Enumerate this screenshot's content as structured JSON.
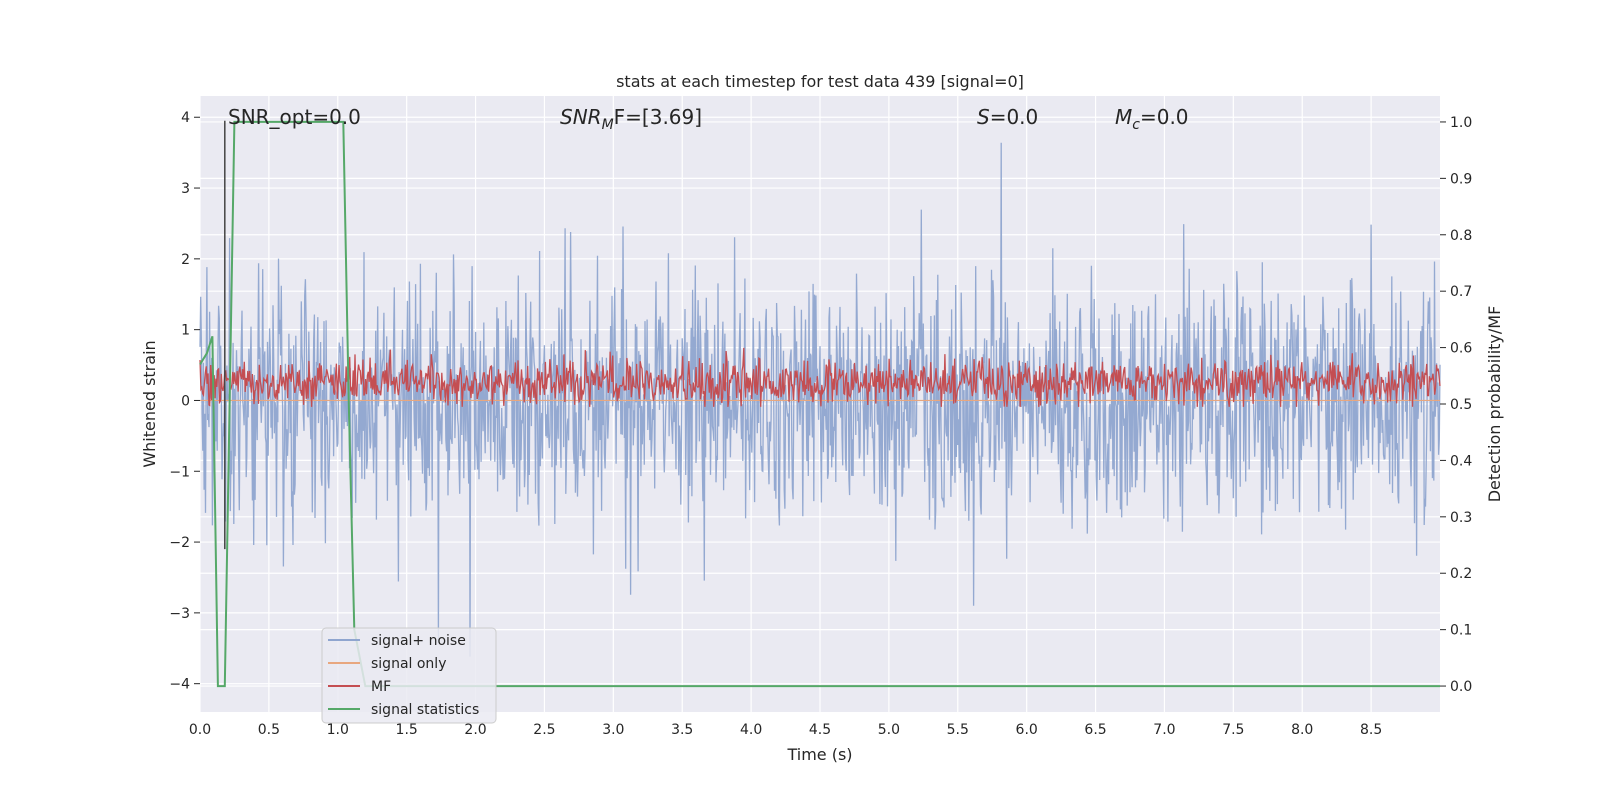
{
  "chart_data": {
    "type": "line",
    "title": "stats at each timestep for test data 439 [signal=0]",
    "xlabel": "Time (s)",
    "ylabel": "Whitened strain",
    "y2label": "Detection probability/MF",
    "xlim": [
      0.0,
      9.0
    ],
    "ylim": [
      -4.4,
      4.3
    ],
    "y2lim": [
      -0.046,
      1.046
    ],
    "xticks": [
      0.0,
      0.5,
      1.0,
      1.5,
      2.0,
      2.5,
      3.0,
      3.5,
      4.0,
      4.5,
      5.0,
      5.5,
      6.0,
      6.5,
      7.0,
      7.5,
      8.0,
      8.5
    ],
    "yticks": [
      -4,
      -3,
      -2,
      -1,
      0,
      1,
      2,
      3,
      4
    ],
    "y2ticks": [
      0.0,
      0.1,
      0.2,
      0.3,
      0.4,
      0.5,
      0.6,
      0.7,
      0.8,
      0.9,
      1.0
    ],
    "grid": true,
    "legend_position": "lower-left",
    "annotations": [
      {
        "id": "snr_opt",
        "text": "SNR_opt=0.0"
      },
      {
        "id": "snr_mf",
        "prefix": "SNR",
        "sub": "M",
        "suffix": "F=[3.69]"
      },
      {
        "id": "s",
        "prefix": "S",
        "sub": "",
        "suffix": "=0.0"
      },
      {
        "id": "mc",
        "prefix": "M",
        "sub": "c",
        "suffix": "=0.0"
      }
    ],
    "series": [
      {
        "name": "signal+ noise",
        "axis": "left",
        "color": "#8fa5cf",
        "description": "dense noisy trace, amplitude mostly within about -2.5..2.5 with peaks near 3.9 and troughs near -4.0",
        "envelope_upper_typical": 2.3,
        "envelope_lower_typical": -2.4,
        "max": 3.95,
        "min": -4.0,
        "sample_rate_hz": 200
      },
      {
        "name": "signal only",
        "axis": "left",
        "color": "#e8a77f",
        "values_constant": 0.0
      },
      {
        "name": "MF",
        "axis": "right",
        "color": "#c44e52",
        "description": "noisy trace mostly between about 0.50 and 0.60 on the right axis, spikes up to about 0.63",
        "typical_low": 0.505,
        "typical_high": 0.6,
        "max": 0.632
      },
      {
        "name": "signal statistics",
        "axis": "right",
        "color": "#55a868",
        "x": [
          0.0,
          0.05,
          0.09,
          0.13,
          0.18,
          0.25,
          0.3,
          0.5,
          0.8,
          1.0,
          1.04,
          1.08,
          1.12,
          1.2,
          1.5,
          2.0,
          3.0,
          4.0,
          5.0,
          6.0,
          7.0,
          8.0,
          9.0
        ],
        "y": [
          0.57,
          0.59,
          0.62,
          0.0,
          0.0,
          1.0,
          1.0,
          1.0,
          1.0,
          1.0,
          1.0,
          0.5,
          0.1,
          0.0,
          0.0,
          0.0,
          0.0,
          0.0,
          0.0,
          0.0,
          0.0,
          0.0,
          0.0
        ]
      }
    ],
    "markers": [
      {
        "name": "vertical marker",
        "color": "#444444",
        "x": 0.18
      }
    ]
  }
}
